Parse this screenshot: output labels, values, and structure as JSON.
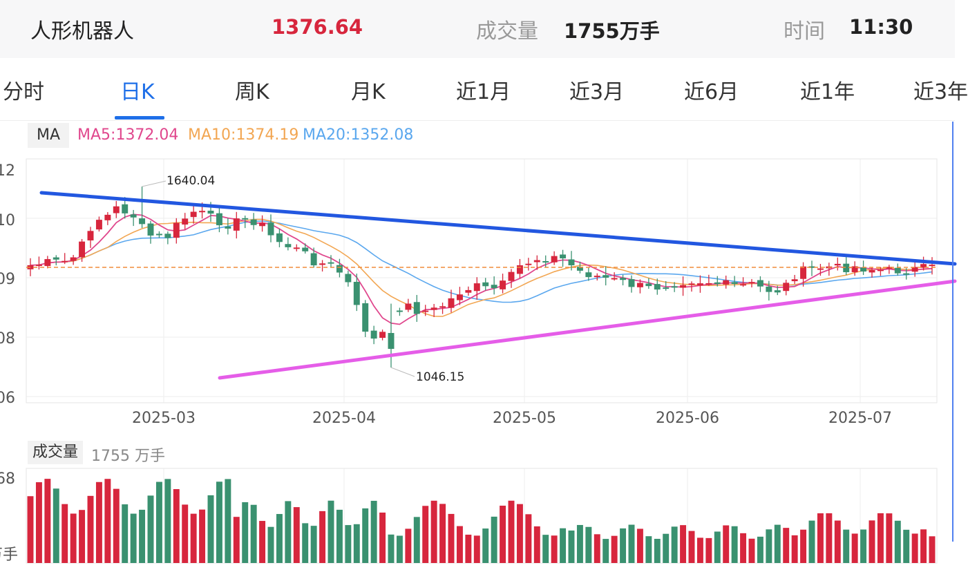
{
  "header": {
    "name": "人形机器人",
    "price": "1376.64",
    "volume_label": "成交量",
    "volume": "1755万手",
    "time_label": "时间",
    "time": "11:30"
  },
  "tabs": [
    "分时",
    "日K",
    "周K",
    "月K",
    "近1月",
    "近3月",
    "近6月",
    "近1年",
    "近3年"
  ],
  "active_tab": "日K",
  "ma_legend": {
    "tag": "MA",
    "ma5": "MA5:1372.04",
    "ma10": "MA10:1374.19",
    "ma20": "MA20:1352.08"
  },
  "volume_legend": {
    "tag": "成交量",
    "value": "1755 万手"
  },
  "colors": {
    "up": "#d7263d",
    "down": "#3a9170",
    "ma5": "#e0478d",
    "ma10": "#f2a652",
    "ma20": "#5aa7ee",
    "resistance_line": "#2257e0",
    "support_line": "#e55de8",
    "reference_line": "#f08c3a",
    "accent": "#1e6fe8"
  },
  "chart_data": {
    "type": "candlestick",
    "x_ticks": [
      "2025-03",
      "2025-04",
      "2025-05",
      "2025-06",
      "2025-07"
    ],
    "y_ticks": [
      "12",
      "10",
      "09",
      "08",
      "06"
    ],
    "volume_y_ticks": [
      "68",
      "万手"
    ],
    "annotations": [
      {
        "label": "1640.04",
        "type": "high"
      },
      {
        "label": "1046.15",
        "type": "low"
      }
    ],
    "trendlines": [
      {
        "name": "resistance",
        "color": "blue"
      },
      {
        "name": "support",
        "color": "magenta"
      }
    ],
    "reference_price": 1376.64
  }
}
